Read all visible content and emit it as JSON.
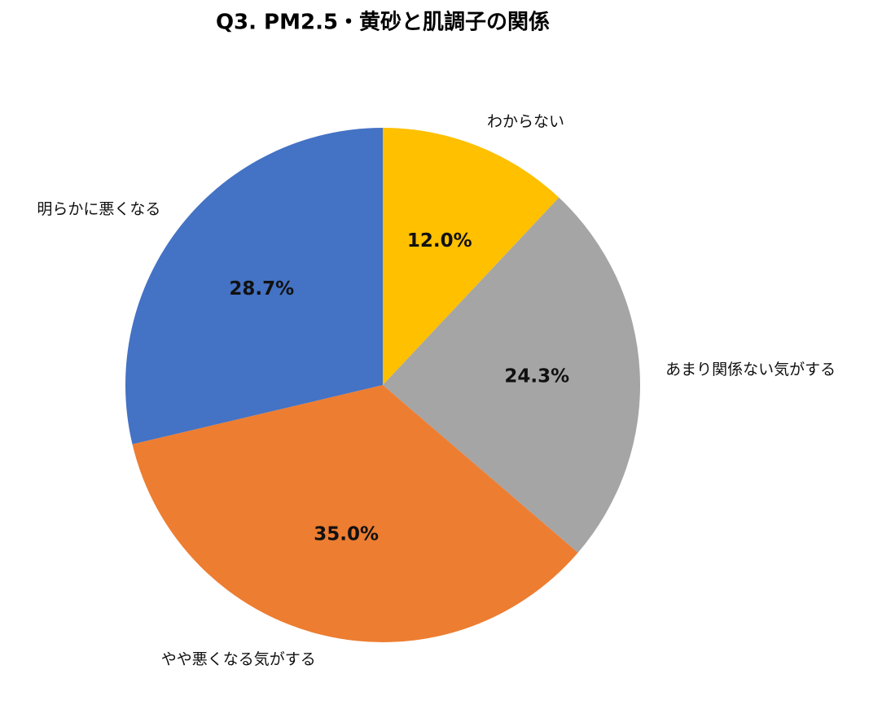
{
  "chart_data": {
    "type": "pie",
    "title": "Q3. PM2.5・黄砂と肌調子の関係",
    "categories": [
      "わからない",
      "あまり関係ない気がする",
      "やや悪くなる気がする",
      "明らかに悪くなる"
    ],
    "values": [
      12.0,
      24.3,
      35.0,
      28.7
    ],
    "value_labels": [
      "12.0%",
      "24.3%",
      "35.0%",
      "28.7%"
    ],
    "colors": [
      "#ffc000",
      "#a5a5a5",
      "#ed7d31",
      "#4472c4"
    ]
  }
}
